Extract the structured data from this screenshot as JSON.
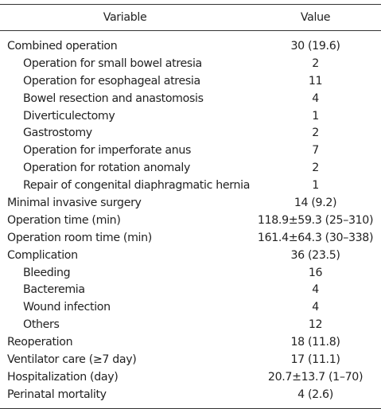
{
  "header": {
    "variable": "Variable",
    "value": "Value"
  },
  "rows": [
    {
      "variable": "Combined operation",
      "value": "30 (19.6)",
      "indent": false
    },
    {
      "variable": "Operation for small bowel atresia",
      "value": "2",
      "indent": true
    },
    {
      "variable": "Operation for esophageal atresia",
      "value": "11",
      "indent": true
    },
    {
      "variable": "Bowel resection and anastomosis",
      "value": "4",
      "indent": true
    },
    {
      "variable": "Diverticulectomy",
      "value": "1",
      "indent": true
    },
    {
      "variable": "Gastrostomy",
      "value": "2",
      "indent": true
    },
    {
      "variable": "Operation for imperforate anus",
      "value": "7",
      "indent": true
    },
    {
      "variable": "Operation for rotation anomaly",
      "value": "2",
      "indent": true
    },
    {
      "variable": "Repair of congenital diaphragmatic hernia",
      "value": "1",
      "indent": true
    },
    {
      "variable": "Minimal invasive surgery",
      "value": "14 (9.2)",
      "indent": false
    },
    {
      "variable": "Operation time (min)",
      "value": "118.9±59.3 (25–310)",
      "indent": false
    },
    {
      "variable": "Operation room time (min)",
      "value": "161.4±64.3 (30–338)",
      "indent": false
    },
    {
      "variable": "Complication",
      "value": "36 (23.5)",
      "indent": false
    },
    {
      "variable": "Bleeding",
      "value": "16",
      "indent": true
    },
    {
      "variable": "Bacteremia",
      "value": "4",
      "indent": true
    },
    {
      "variable": "Wound infection",
      "value": "4",
      "indent": true
    },
    {
      "variable": "Others",
      "value": "12",
      "indent": true
    },
    {
      "variable": "Reoperation",
      "value": "18 (11.8)",
      "indent": false
    },
    {
      "variable": "Ventilator care (≥7 day)",
      "value": "17 (11.1)",
      "indent": false
    },
    {
      "variable": "Hospitalization (day)",
      "value": "20.7±13.7 (1–70)",
      "indent": false
    },
    {
      "variable": "Perinatal mortality",
      "value": "4 (2.6)",
      "indent": false
    }
  ]
}
